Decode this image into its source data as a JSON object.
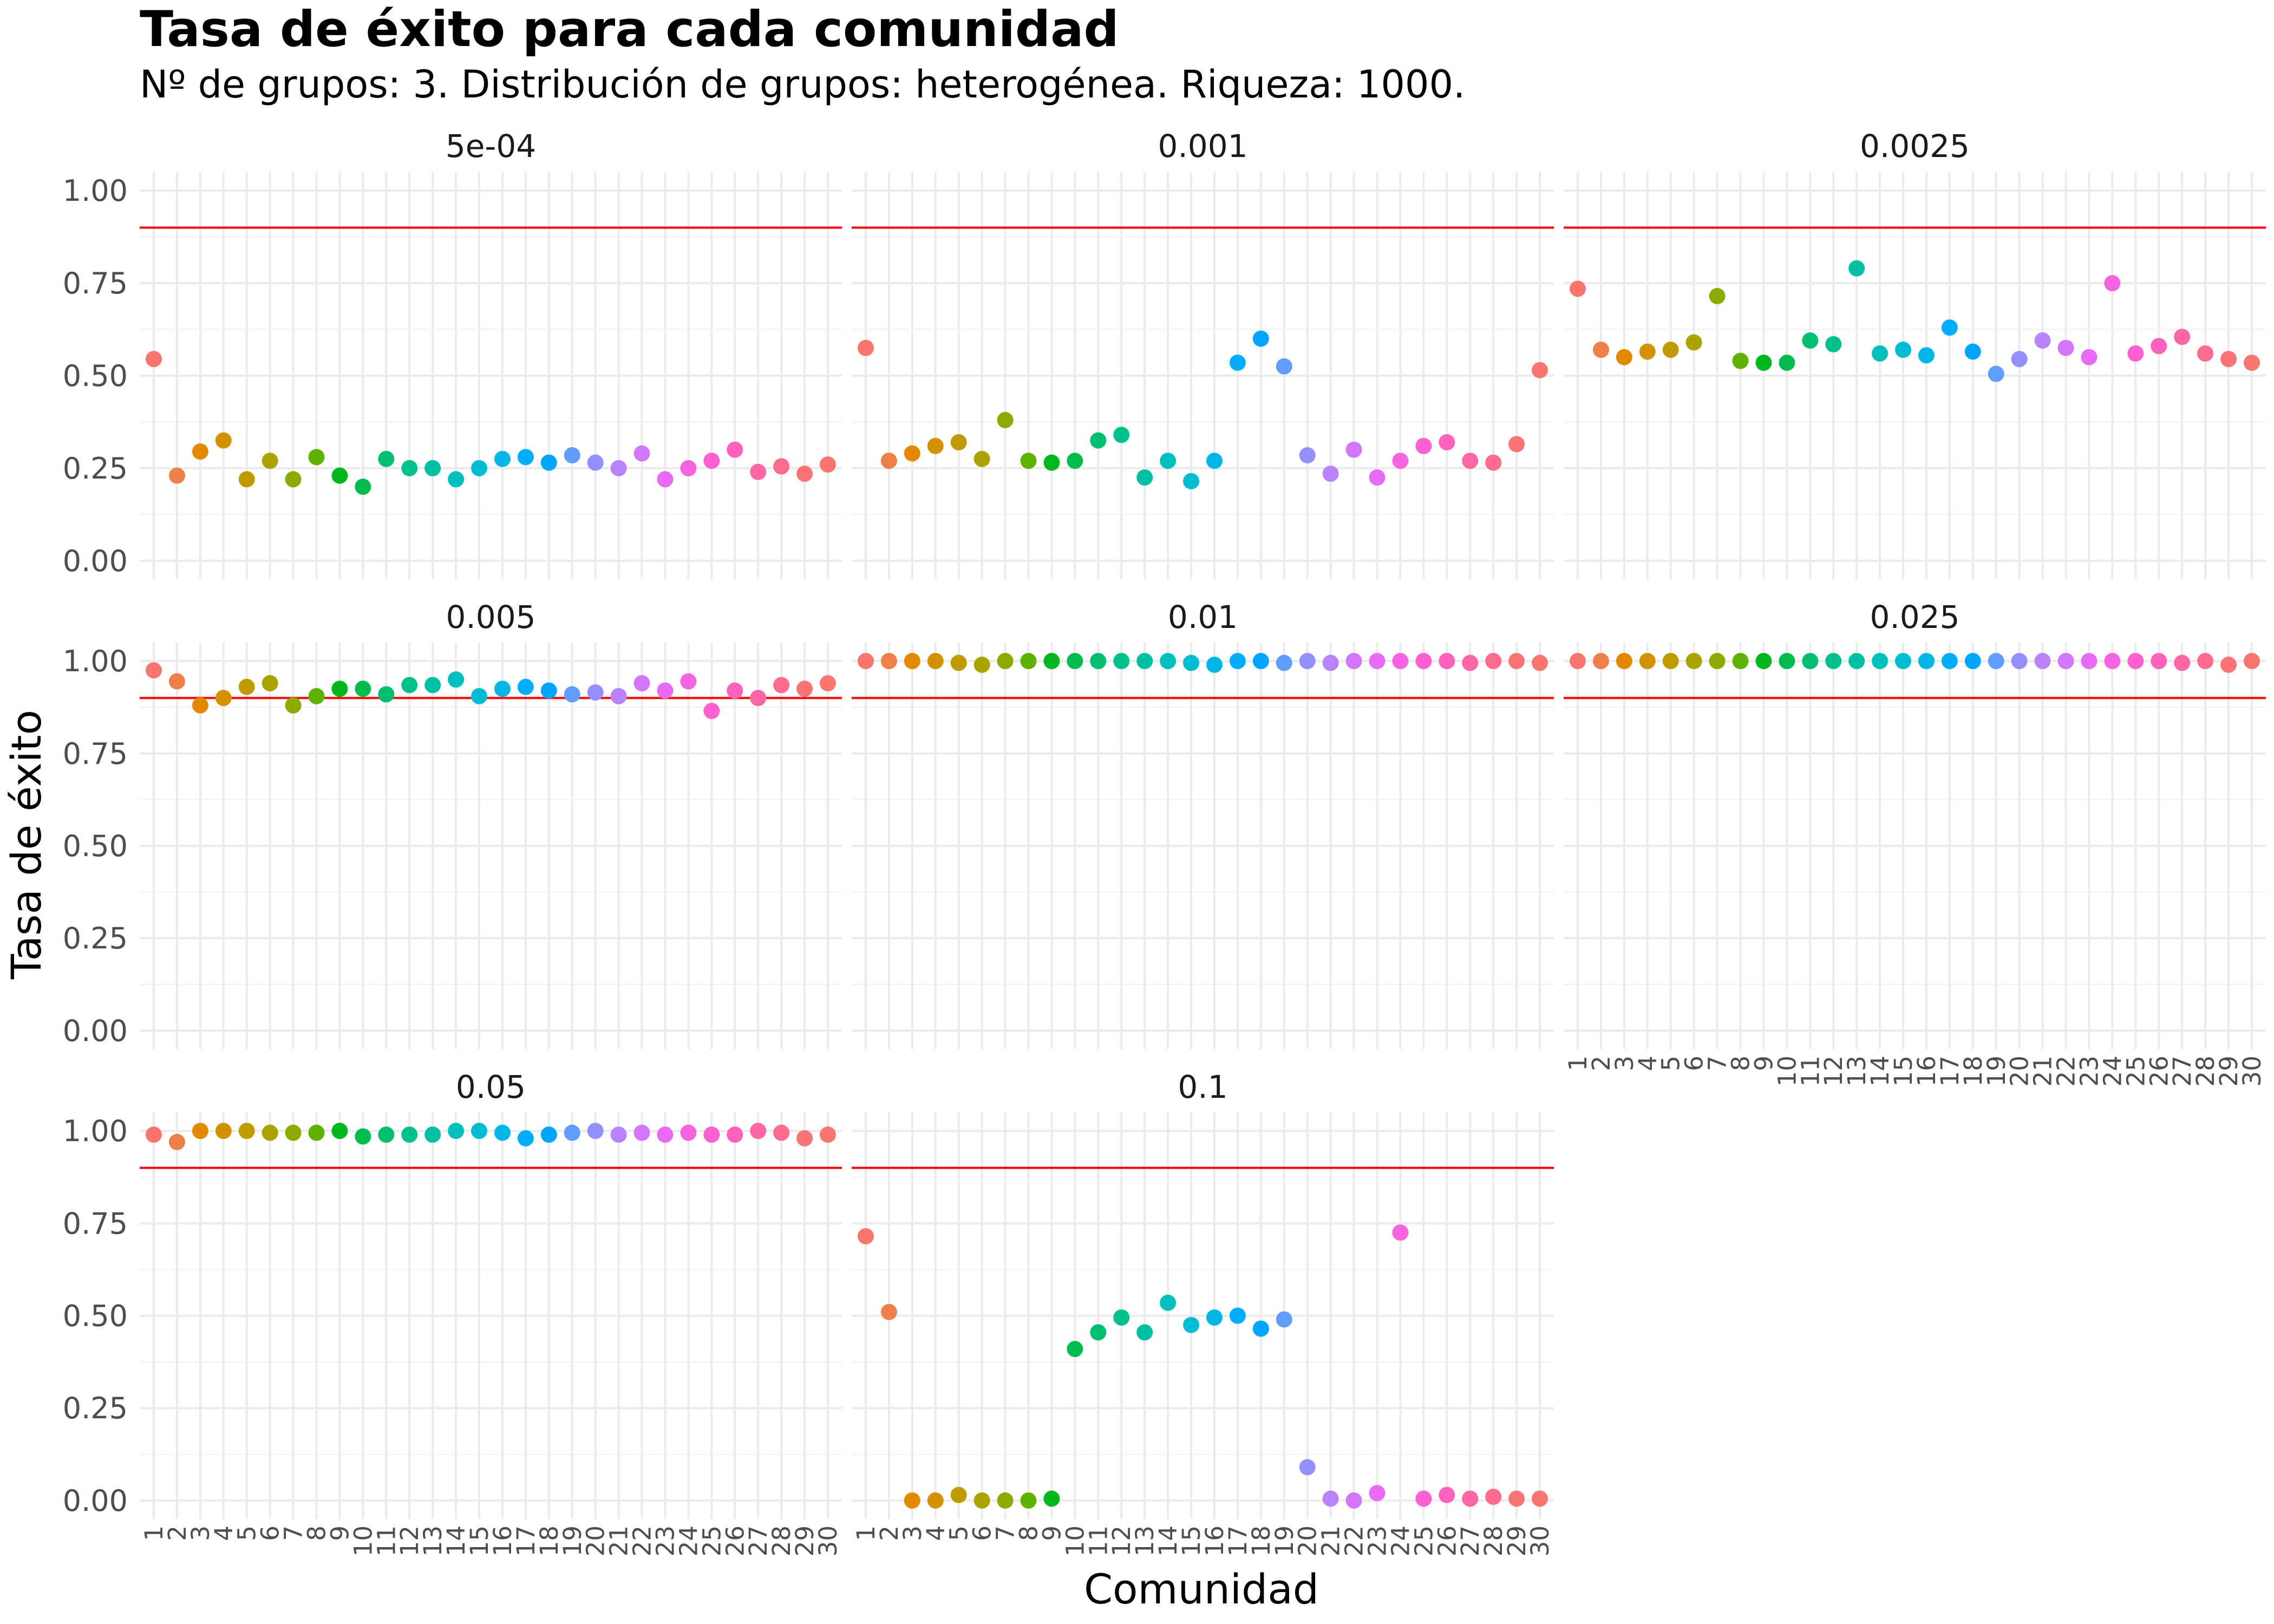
{
  "chart_data": {
    "type": "scatter",
    "title": "Tasa de éxito para cada comunidad",
    "subtitle": "Nº de grupos: 3. Distribución de grupos: heterogénea. Riqueza: 1000.",
    "xlabel": "Comunidad",
    "ylabel": "Tasa de éxito",
    "ylim": [
      0,
      1
    ],
    "yticks": [
      "0.00",
      "0.25",
      "0.50",
      "0.75",
      "1.00"
    ],
    "x": [
      "1",
      "2",
      "3",
      "4",
      "5",
      "6",
      "7",
      "8",
      "9",
      "10",
      "11",
      "12",
      "13",
      "14",
      "15",
      "16",
      "17",
      "18",
      "19",
      "20",
      "21",
      "22",
      "23",
      "24",
      "25",
      "26",
      "27",
      "28",
      "29",
      "30"
    ],
    "reference_line": 0.9,
    "grid": true,
    "legend": "none",
    "colors": {
      "reference_line": "#ff0000",
      "points": [
        "#F8766D",
        "#EF7F49",
        "#E38900",
        "#D39200",
        "#C09B00",
        "#A9A400",
        "#8BAB00",
        "#5EB300",
        "#00B81E",
        "#00BC4F",
        "#00BE6F",
        "#00C08B",
        "#00C0A4",
        "#00BFBC",
        "#00BCD3",
        "#00B6E7",
        "#00ADFA",
        "#00A5FF",
        "#619CFF",
        "#9590FF",
        "#B983FF",
        "#D376FF",
        "#E76BF3",
        "#F565E2",
        "#FD61D1",
        "#FF61BC",
        "#FF66A5",
        "#FD6C8C",
        "#F97474",
        "#F8766D"
      ]
    },
    "panels": [
      {
        "label": "5e-04",
        "values": [
          0.545,
          0.23,
          0.295,
          0.325,
          0.22,
          0.27,
          0.22,
          0.28,
          0.23,
          0.2,
          0.275,
          0.25,
          0.25,
          0.22,
          0.25,
          0.275,
          0.28,
          0.265,
          0.285,
          0.265,
          0.25,
          0.29,
          0.22,
          0.25,
          0.27,
          0.3,
          0.24,
          0.255,
          0.235,
          0.26
        ]
      },
      {
        "label": "0.001",
        "values": [
          0.575,
          0.27,
          0.29,
          0.31,
          0.32,
          0.275,
          0.38,
          0.27,
          0.265,
          0.27,
          0.325,
          0.34,
          0.225,
          0.27,
          0.215,
          0.27,
          0.535,
          0.6,
          0.525,
          0.285,
          0.235,
          0.3,
          0.225,
          0.27,
          0.31,
          0.32,
          0.27,
          0.265,
          0.315,
          0.515
        ]
      },
      {
        "label": "0.0025",
        "values": [
          0.735,
          0.57,
          0.55,
          0.565,
          0.57,
          0.59,
          0.715,
          0.54,
          0.535,
          0.535,
          0.595,
          0.585,
          0.79,
          0.56,
          0.57,
          0.555,
          0.63,
          0.565,
          0.505,
          0.545,
          0.595,
          0.575,
          0.55,
          0.75,
          0.56,
          0.58,
          0.605,
          0.56,
          0.545,
          0.535
        ]
      },
      {
        "label": "0.005",
        "values": [
          0.975,
          0.945,
          0.88,
          0.9,
          0.93,
          0.94,
          0.88,
          0.905,
          0.925,
          0.925,
          0.91,
          0.935,
          0.935,
          0.95,
          0.905,
          0.925,
          0.93,
          0.92,
          0.91,
          0.915,
          0.905,
          0.94,
          0.92,
          0.945,
          0.865,
          0.92,
          0.9,
          0.935,
          0.925,
          0.94
        ]
      },
      {
        "label": "0.01",
        "values": [
          1.0,
          1.0,
          1.0,
          1.0,
          0.995,
          0.99,
          1.0,
          1.0,
          1.0,
          1.0,
          1.0,
          1.0,
          1.0,
          1.0,
          0.995,
          0.99,
          1.0,
          1.0,
          0.995,
          1.0,
          0.995,
          1.0,
          1.0,
          1.0,
          1.0,
          1.0,
          0.995,
          1.0,
          1.0,
          0.995
        ]
      },
      {
        "label": "0.025",
        "values": [
          1.0,
          1.0,
          1.0,
          1.0,
          1.0,
          1.0,
          1.0,
          1.0,
          1.0,
          1.0,
          1.0,
          1.0,
          1.0,
          1.0,
          1.0,
          1.0,
          1.0,
          1.0,
          1.0,
          1.0,
          1.0,
          1.0,
          1.0,
          1.0,
          1.0,
          1.0,
          0.995,
          1.0,
          0.99,
          1.0
        ]
      },
      {
        "label": "0.05",
        "values": [
          0.99,
          0.97,
          1.0,
          1.0,
          1.0,
          0.995,
          0.995,
          0.995,
          1.0,
          0.985,
          0.99,
          0.99,
          0.99,
          1.0,
          1.0,
          0.995,
          0.98,
          0.99,
          0.995,
          1.0,
          0.99,
          0.995,
          0.99,
          0.995,
          0.99,
          0.99,
          1.0,
          0.995,
          0.98,
          0.99
        ]
      },
      {
        "label": "0.1",
        "values": [
          0.715,
          0.51,
          0.0,
          0.0,
          0.015,
          0.0,
          0.0,
          0.0,
          0.005,
          0.41,
          0.455,
          0.495,
          0.455,
          0.535,
          0.475,
          0.495,
          0.5,
          0.465,
          0.49,
          0.09,
          0.005,
          0.0,
          0.02,
          0.725,
          0.005,
          0.015,
          0.005,
          0.01,
          0.005,
          0.005
        ]
      }
    ]
  }
}
